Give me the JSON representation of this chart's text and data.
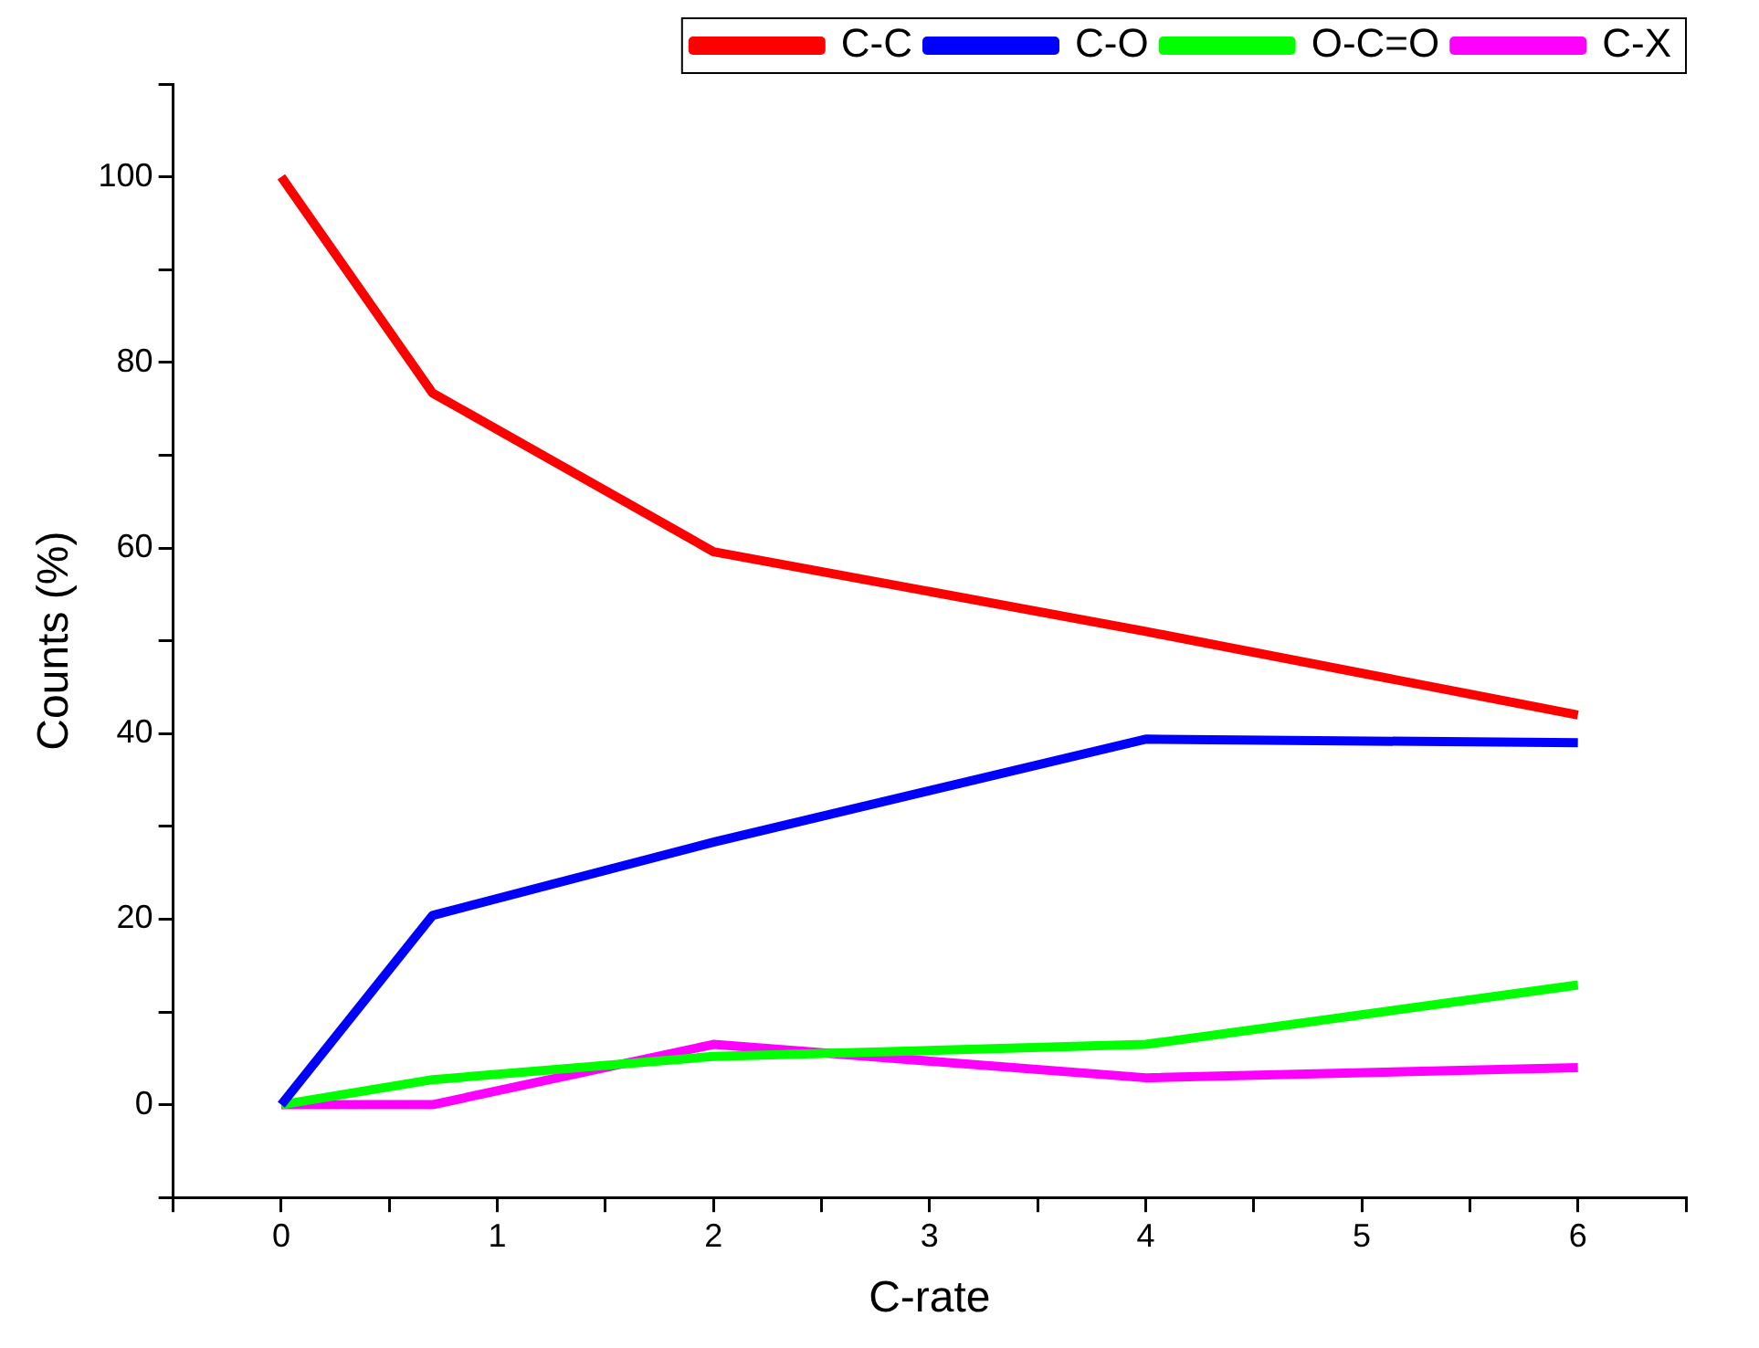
{
  "chart_data": {
    "type": "line",
    "xlabel": "C-rate",
    "ylabel": "Counts (%)",
    "x": [
      0,
      0.7,
      2,
      4,
      6
    ],
    "series": [
      {
        "name": "C-C",
        "color": "#ff0000",
        "values": [
          100,
          76.7,
          59.6,
          51,
          42
        ]
      },
      {
        "name": "C-O",
        "color": "#0000ff",
        "values": [
          0,
          20.4,
          28.3,
          39.4,
          39
        ]
      },
      {
        "name": "O-C=O",
        "color": "#00ff00",
        "values": [
          0,
          2.7,
          5.2,
          6.5,
          12.9
        ]
      },
      {
        "name": "C-X",
        "color": "#ff00ff",
        "values": [
          0,
          0,
          6.5,
          2.9,
          4
        ]
      }
    ],
    "xlim": [
      -0.5,
      6.5
    ],
    "xticks": [
      {
        "value": -0.5,
        "label": null
      },
      0,
      {
        "value": 0.5,
        "label": null
      },
      1,
      {
        "value": 1.5,
        "label": null
      },
      2,
      {
        "value": 2.5,
        "label": null
      },
      3,
      {
        "value": 3.5,
        "label": null
      },
      4,
      {
        "value": 4.5,
        "label": null
      },
      5,
      {
        "value": 5.5,
        "label": null
      },
      6,
      {
        "value": 6.5,
        "label": null
      }
    ],
    "ylim": [
      -10,
      110
    ],
    "yticks": [
      {
        "value": -10,
        "label": null
      },
      0,
      {
        "value": 10,
        "label": null
      },
      20,
      {
        "value": 30,
        "label": null
      },
      40,
      {
        "value": 50,
        "label": null
      },
      60,
      {
        "value": 70,
        "label": null
      },
      80,
      {
        "value": 90,
        "label": null
      },
      100,
      {
        "value": 110,
        "label": null
      }
    ],
    "grid": false,
    "legend": "top right",
    "marker": "none",
    "line_style": "solid"
  }
}
